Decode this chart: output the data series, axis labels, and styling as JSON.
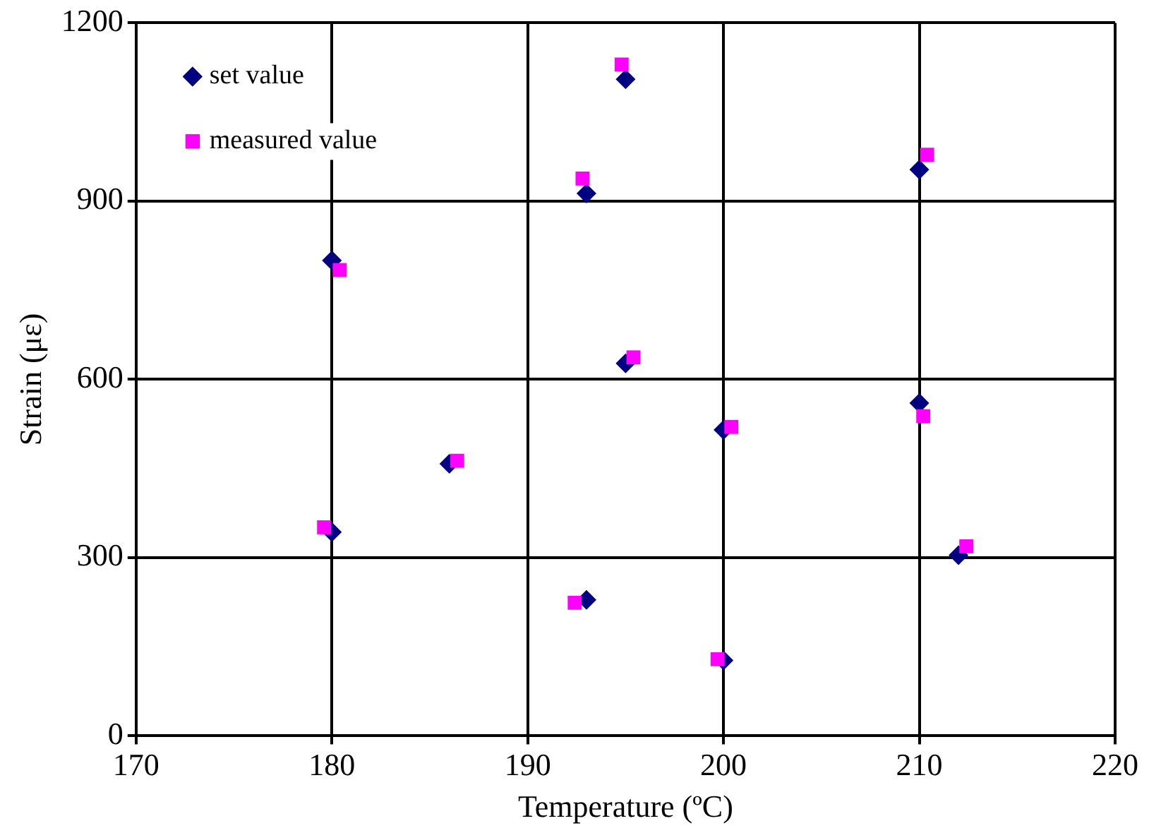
{
  "chart_data": {
    "type": "scatter",
    "xlabel": "Temperature (ºC)",
    "ylabel": "Strain (με)",
    "xlim": [
      170,
      220
    ],
    "xticks": [
      170,
      180,
      190,
      200,
      210,
      220
    ],
    "ylim": [
      0,
      1200
    ],
    "yticks": [
      0,
      300,
      600,
      900,
      1200
    ],
    "grid": true,
    "legend": "top left",
    "series": [
      {
        "name": "set value",
        "color": "#000080",
        "marker": "diamond",
        "x": [
          180,
          180,
          186,
          193,
          193,
          195,
          195,
          200,
          200,
          210,
          210,
          212
        ],
        "values": [
          800,
          343,
          458,
          913,
          229,
          1105,
          627,
          515,
          127,
          953,
          560,
          304
        ]
      },
      {
        "name": "measured value",
        "color": "#ff00ff",
        "marker": "square",
        "x": [
          180.4,
          179.6,
          186.4,
          192.8,
          192.4,
          194.8,
          195.4,
          200.4,
          199.7,
          210.4,
          210.2,
          212.4
        ],
        "values": [
          784,
          351,
          463,
          938,
          224,
          1130,
          637,
          520,
          129,
          978,
          538,
          319
        ]
      }
    ]
  }
}
